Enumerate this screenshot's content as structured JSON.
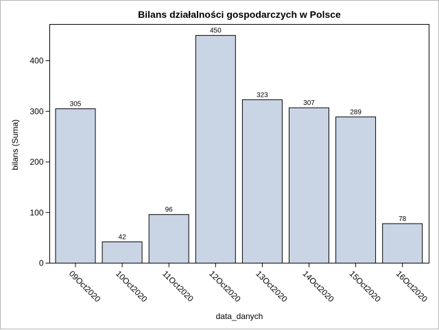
{
  "chart_data": {
    "type": "bar",
    "title": "Bilans działalności gospodarczych w Polsce",
    "xlabel": "data_danych",
    "ylabel": "bilans (Suma)",
    "categories": [
      "09Oct2020",
      "10Oct2020",
      "11Oct2020",
      "12Oct2020",
      "13Oct2020",
      "14Oct2020",
      "15Oct2020",
      "16Oct2020"
    ],
    "values": [
      305,
      42,
      96,
      450,
      323,
      307,
      289,
      78
    ],
    "data_labels": [
      "305",
      "42",
      "96",
      "450",
      "323",
      "307",
      "289",
      "78"
    ],
    "ylim": [
      0,
      450
    ],
    "yticks": [
      0,
      100,
      200,
      300,
      400
    ],
    "ytick_labels": [
      "0",
      "100",
      "200",
      "300",
      "400"
    ],
    "bar_color": "#c9d5e5",
    "grid": false,
    "legend": "none"
  }
}
